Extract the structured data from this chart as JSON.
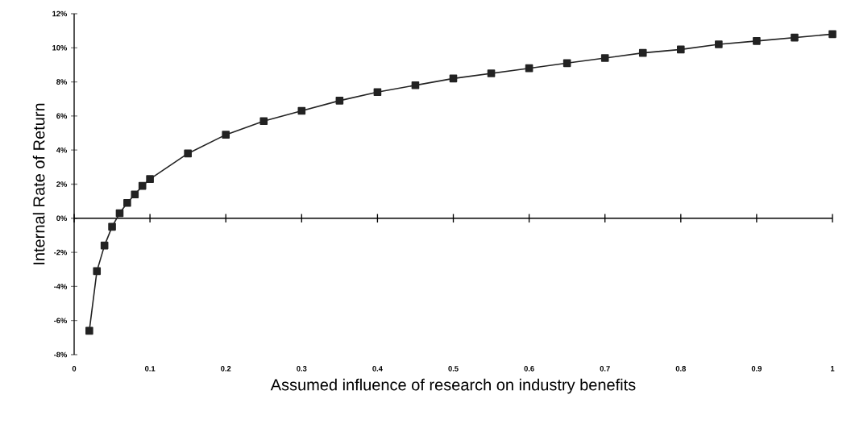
{
  "chart_data": {
    "type": "line",
    "xlabel": "Assumed influence of research on industry benefits",
    "ylabel": "Internal Rate of Return",
    "x": [
      0.02,
      0.03,
      0.04,
      0.05,
      0.06,
      0.07,
      0.08,
      0.09,
      0.1,
      0.15,
      0.2,
      0.25,
      0.3,
      0.35,
      0.4,
      0.45,
      0.5,
      0.55,
      0.6,
      0.65,
      0.7,
      0.75,
      0.8,
      0.85,
      0.9,
      0.95,
      1
    ],
    "series": [
      {
        "color": "#222222",
        "values": [
          -6.6,
          -3.1,
          -1.6,
          -0.5,
          0.3,
          0.9,
          1.4,
          1.9,
          2.3,
          3.8,
          4.9,
          5.7,
          6.3,
          6.9,
          7.4,
          7.8,
          8.2,
          8.5,
          8.8,
          9.1,
          9.4,
          9.7,
          9.9,
          10.2,
          10.4,
          10.6,
          10.8
        ]
      }
    ],
    "xlim": [
      0,
      1
    ],
    "xticks": [
      0,
      0.1,
      0.2,
      0.3,
      0.4,
      0.5,
      0.6,
      0.7,
      0.8,
      0.9,
      1
    ],
    "ylim": [
      -8,
      12
    ],
    "yticks": [
      {
        "value": -8,
        "label": "-8%"
      },
      {
        "value": -6,
        "label": "-6%"
      },
      {
        "value": -4,
        "label": "-4%"
      },
      {
        "value": -2,
        "label": "-2%"
      },
      {
        "value": 0,
        "label": "0%"
      },
      {
        "value": 2,
        "label": "2%"
      },
      {
        "value": 4,
        "label": "4%"
      },
      {
        "value": 6,
        "label": "6%"
      },
      {
        "value": 8,
        "label": "8%"
      },
      {
        "value": 10,
        "label": "10%"
      },
      {
        "value": 12,
        "label": "12%"
      }
    ],
    "ref_lines": [
      {
        "axis": "y",
        "value": 0,
        "color": "#000000"
      }
    ],
    "grid": false,
    "marker": "square",
    "line_style": "solid"
  }
}
